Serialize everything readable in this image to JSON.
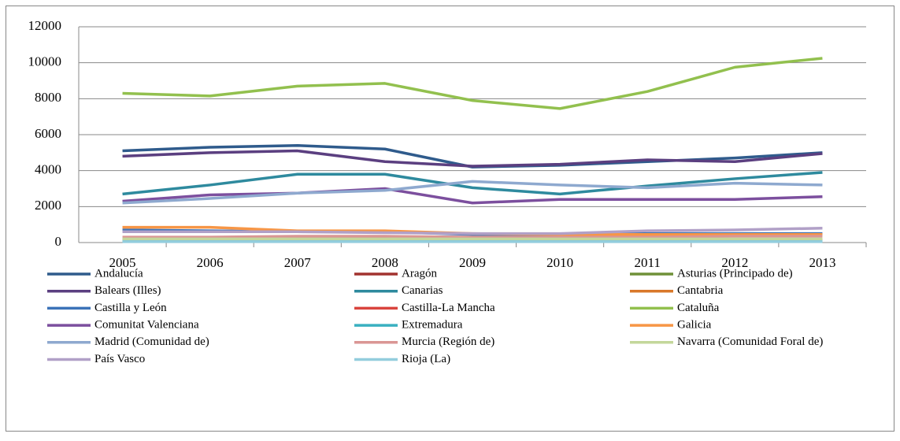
{
  "chart_data": {
    "type": "line",
    "categories": [
      "2005",
      "2006",
      "2007",
      "2008",
      "2009",
      "2010",
      "2011",
      "2012",
      "2013"
    ],
    "ylim": [
      0,
      12000
    ],
    "yticks": [
      0,
      2000,
      4000,
      6000,
      8000,
      10000,
      12000
    ],
    "grid": true,
    "legend": "bottom",
    "series": [
      {
        "name": "Andalucía",
        "color": "#2F5B8C",
        "values": [
          5100,
          5300,
          5400,
          5200,
          4200,
          4300,
          4500,
          4700,
          5000
        ]
      },
      {
        "name": "Aragón",
        "color": "#A2322F",
        "values": [
          200,
          200,
          200,
          200,
          150,
          150,
          150,
          150,
          150
        ]
      },
      {
        "name": "Asturias (Principado de)",
        "color": "#6F9138",
        "values": [
          100,
          100,
          100,
          100,
          100,
          100,
          100,
          100,
          100
        ]
      },
      {
        "name": "Balears (Illes)",
        "color": "#5B3F80",
        "values": [
          4800,
          5000,
          5100,
          4500,
          4250,
          4350,
          4600,
          4500,
          4950
        ]
      },
      {
        "name": "Canarias",
        "color": "#2E8A9E",
        "values": [
          2700,
          3200,
          3800,
          3800,
          3050,
          2700,
          3150,
          3550,
          3900
        ]
      },
      {
        "name": "Cantabria",
        "color": "#D9782A",
        "values": [
          100,
          100,
          100,
          100,
          100,
          100,
          100,
          100,
          100
        ]
      },
      {
        "name": "Castilla y León",
        "color": "#3C73B8",
        "values": [
          700,
          650,
          600,
          600,
          450,
          450,
          500,
          500,
          500
        ]
      },
      {
        "name": "Castilla-La Mancha",
        "color": "#D9443E",
        "values": [
          150,
          150,
          150,
          150,
          150,
          150,
          150,
          150,
          150
        ]
      },
      {
        "name": "Cataluña",
        "color": "#92C04E",
        "values": [
          8300,
          8150,
          8700,
          8850,
          7900,
          7450,
          8400,
          9750,
          10250
        ]
      },
      {
        "name": "Comunitat Valenciana",
        "color": "#7C4F9E",
        "values": [
          2300,
          2650,
          2750,
          3000,
          2200,
          2400,
          2400,
          2400,
          2550
        ]
      },
      {
        "name": "Extremadura",
        "color": "#3AB0C0",
        "values": [
          100,
          100,
          80,
          80,
          80,
          80,
          80,
          80,
          80
        ]
      },
      {
        "name": "Galicia",
        "color": "#F79646",
        "values": [
          850,
          850,
          650,
          650,
          500,
          450,
          450,
          450,
          450
        ]
      },
      {
        "name": "Madrid (Comunidad de)",
        "color": "#8EA9CF",
        "values": [
          2200,
          2450,
          2750,
          2900,
          3400,
          3200,
          3050,
          3300,
          3200
        ]
      },
      {
        "name": "Murcia (Región de)",
        "color": "#DA9694",
        "values": [
          300,
          300,
          350,
          350,
          300,
          300,
          300,
          350,
          350
        ]
      },
      {
        "name": "Navarra (Comunidad Foral de)",
        "color": "#C4D79B",
        "values": [
          200,
          200,
          200,
          200,
          200,
          200,
          200,
          200,
          200
        ]
      },
      {
        "name": "País Vasco",
        "color": "#B1A0C7",
        "values": [
          600,
          600,
          600,
          550,
          500,
          500,
          650,
          700,
          800
        ]
      },
      {
        "name": "Rioja (La)",
        "color": "#93CDDD",
        "values": [
          50,
          50,
          50,
          50,
          50,
          50,
          50,
          50,
          50
        ]
      }
    ]
  }
}
